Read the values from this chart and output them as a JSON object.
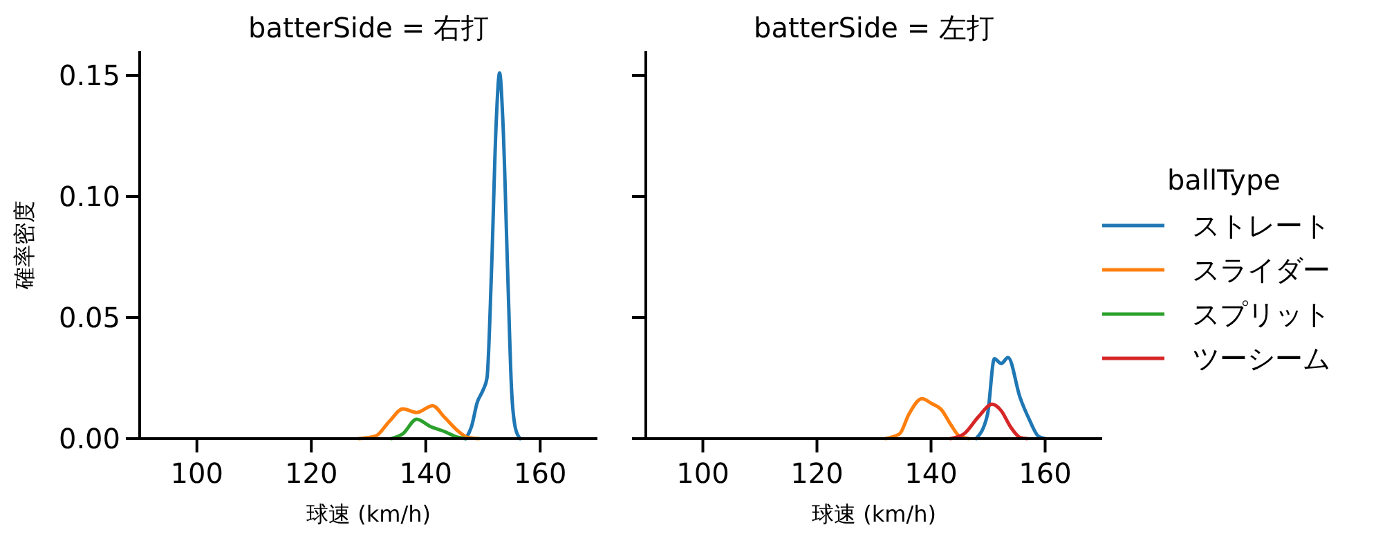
{
  "chart_data": [
    {
      "type": "line",
      "title": "batterSide = 右打",
      "xlabel": "球速 (km/h)",
      "ylabel": "確率密度",
      "xlim": [
        90,
        170
      ],
      "xticks": [
        100,
        120,
        140,
        160
      ],
      "ylim": [
        0,
        0.16
      ],
      "yticks": [
        {
          "value": 0,
          "label": "0.00"
        },
        {
          "value": 0.05,
          "label": "0.05"
        },
        {
          "value": 0.1,
          "label": "0.10"
        },
        {
          "value": 0.15,
          "label": "0.15"
        }
      ],
      "grid": false,
      "legend": "right",
      "series": [
        {
          "name": "ストレート",
          "color": "#1f77b4",
          "x": [
            147,
            148,
            149,
            150,
            150.7,
            151.5,
            152.3,
            152.9,
            153.5,
            154.3,
            155,
            155.7,
            156.5
          ],
          "values": [
            0,
            0.005,
            0.015,
            0.02,
            0.025,
            0.07,
            0.13,
            0.151,
            0.13,
            0.07,
            0.02,
            0.004,
            0
          ]
        },
        {
          "name": "スライダー",
          "color": "#ff7f0e",
          "x": [
            128.3,
            131.2,
            133.6,
            136,
            138.4,
            141.2,
            143.2,
            145.7,
            147.3,
            149.3
          ],
          "values": [
            0,
            0.001,
            0.007,
            0.0123,
            0.0108,
            0.0136,
            0.009,
            0.003,
            0.0005,
            0
          ]
        },
        {
          "name": "スプリット",
          "color": "#2ca02c",
          "x": [
            134,
            136,
            138.4,
            140.8,
            143.2,
            145.7,
            146.9
          ],
          "values": [
            0,
            0.002,
            0.008,
            0.005,
            0.003,
            0.0005,
            0
          ]
        }
      ]
    },
    {
      "type": "line",
      "title": "batterSide = 左打",
      "xlabel": "球速 (km/h)",
      "xlim": [
        90,
        170
      ],
      "xticks": [
        100,
        120,
        140,
        160
      ],
      "ylim": [
        0,
        0.16
      ],
      "yticks": [
        {
          "value": 0,
          "label": null
        },
        {
          "value": 0.05,
          "label": null
        },
        {
          "value": 0.1,
          "label": null
        },
        {
          "value": 0.15,
          "label": null
        }
      ],
      "tick_labels": "x",
      "grid": false,
      "legend": "right",
      "legend_title": "ballType",
      "series": [
        {
          "name": "ストレート",
          "color": "#1f77b4",
          "x": [
            147.9,
            149.9,
            151.1,
            152.3,
            153.5,
            155.6,
            157.2,
            158.8,
            160
          ],
          "values": [
            0,
            0.01,
            0.033,
            0.031,
            0.0335,
            0.017,
            0.008,
            0.001,
            0
          ]
        },
        {
          "name": "スライダー",
          "color": "#ff7f0e",
          "x": [
            132,
            134.5,
            136.1,
            138.4,
            140.1,
            141.8,
            143.4,
            145,
            146.6
          ],
          "values": [
            0,
            0.002,
            0.01,
            0.0165,
            0.0145,
            0.012,
            0.006,
            0.001,
            0
          ]
        },
        {
          "name": "ツーシーム",
          "color": "#d62728",
          "x": [
            143.4,
            145.8,
            148.3,
            150.7,
            152.3,
            153.9,
            155.6,
            156.8
          ],
          "values": [
            0,
            0.002,
            0.009,
            0.0142,
            0.0115,
            0.005,
            0.0005,
            0
          ]
        }
      ]
    }
  ]
}
